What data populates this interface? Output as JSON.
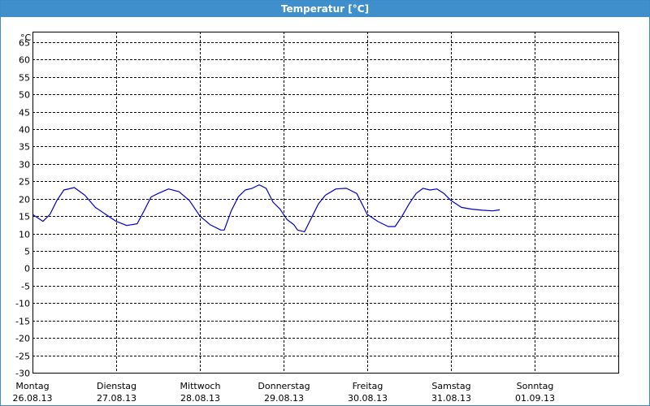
{
  "window": {
    "title": "Temperatur [°C]"
  },
  "colors": {
    "title_bar": "#3e8fcc",
    "frame": "#3c8ac6",
    "series": "#0000c8",
    "grid": "#000000"
  },
  "chart_data": {
    "type": "line",
    "title": "Temperatur [°C]",
    "y_unit_label": "°C",
    "ylim": [
      -30,
      68
    ],
    "y_ticks": [
      65,
      60,
      55,
      50,
      45,
      40,
      35,
      30,
      25,
      20,
      15,
      10,
      5,
      0,
      -5,
      -10,
      -15,
      -20,
      -25,
      -30
    ],
    "xlim": [
      "2013-08-26",
      "2013-09-02"
    ],
    "x_ticks": [
      {
        "day": "Montag",
        "date": "26.08.13"
      },
      {
        "day": "Dienstag",
        "date": "27.08.13"
      },
      {
        "day": "Mittwoch",
        "date": "28.08.13"
      },
      {
        "day": "Donnerstag",
        "date": "29.08.13"
      },
      {
        "day": "Freitag",
        "date": "30.08.13"
      },
      {
        "day": "Samstag",
        "date": "31.08.13"
      },
      {
        "day": "Sonntag",
        "date": "01.09.13"
      }
    ],
    "grid": true,
    "grid_style": "dashed",
    "series": [
      {
        "points": [
          [
            "2013-08-26 00:00",
            15.5
          ],
          [
            "2013-08-26 03:00",
            13.5
          ],
          [
            "2013-08-26 05:00",
            15.5
          ],
          [
            "2013-08-26 07:00",
            19.5
          ],
          [
            "2013-08-26 09:00",
            22.5
          ],
          [
            "2013-08-26 12:00",
            23.2
          ],
          [
            "2013-08-26 15:00",
            21.0
          ],
          [
            "2013-08-26 18:00",
            17.5
          ],
          [
            "2013-08-26 21:00",
            15.5
          ],
          [
            "2013-08-27 00:00",
            13.5
          ],
          [
            "2013-08-27 03:00",
            12.3
          ],
          [
            "2013-08-27 06:00",
            12.8
          ],
          [
            "2013-08-27 08:00",
            16.5
          ],
          [
            "2013-08-27 10:00",
            20.5
          ],
          [
            "2013-08-27 12:00",
            21.5
          ],
          [
            "2013-08-27 15:00",
            22.8
          ],
          [
            "2013-08-27 18:00",
            22.0
          ],
          [
            "2013-08-27 21:00",
            19.5
          ],
          [
            "2013-08-28 00:00",
            15.0
          ],
          [
            "2013-08-28 03:00",
            12.5
          ],
          [
            "2013-08-28 06:00",
            11.0
          ],
          [
            "2013-08-28 07:00",
            11.0
          ],
          [
            "2013-08-28 09:00",
            16.5
          ],
          [
            "2013-08-28 11:00",
            20.5
          ],
          [
            "2013-08-28 13:00",
            22.5
          ],
          [
            "2013-08-28 15:00",
            23.0
          ],
          [
            "2013-08-28 17:00",
            24.0
          ],
          [
            "2013-08-28 19:00",
            23.0
          ],
          [
            "2013-08-28 21:00",
            19.0
          ],
          [
            "2013-08-28 23:00",
            17.0
          ],
          [
            "2013-08-29 01:00",
            14.0
          ],
          [
            "2013-08-29 03:00",
            12.5
          ],
          [
            "2013-08-29 04:00",
            11.0
          ],
          [
            "2013-08-29 06:00",
            10.5
          ],
          [
            "2013-08-29 08:00",
            14.5
          ],
          [
            "2013-08-29 10:00",
            18.5
          ],
          [
            "2013-08-29 12:00",
            21.0
          ],
          [
            "2013-08-29 15:00",
            22.8
          ],
          [
            "2013-08-29 18:00",
            23.0
          ],
          [
            "2013-08-29 21:00",
            21.5
          ],
          [
            "2013-08-30 00:00",
            15.5
          ],
          [
            "2013-08-30 03:00",
            13.5
          ],
          [
            "2013-08-30 06:00",
            12.0
          ],
          [
            "2013-08-30 08:00",
            12.0
          ],
          [
            "2013-08-30 10:00",
            15.0
          ],
          [
            "2013-08-30 12:00",
            18.5
          ],
          [
            "2013-08-30 14:00",
            21.5
          ],
          [
            "2013-08-30 16:00",
            23.0
          ],
          [
            "2013-08-30 18:00",
            22.5
          ],
          [
            "2013-08-30 20:00",
            22.8
          ],
          [
            "2013-08-30 22:00",
            21.5
          ],
          [
            "2013-08-31 00:00",
            19.5
          ],
          [
            "2013-08-31 03:00",
            17.5
          ],
          [
            "2013-08-31 06:00",
            17.0
          ],
          [
            "2013-08-31 09:00",
            16.7
          ],
          [
            "2013-08-31 12:00",
            16.5
          ],
          [
            "2013-08-31 14:00",
            16.8
          ]
        ]
      }
    ]
  }
}
